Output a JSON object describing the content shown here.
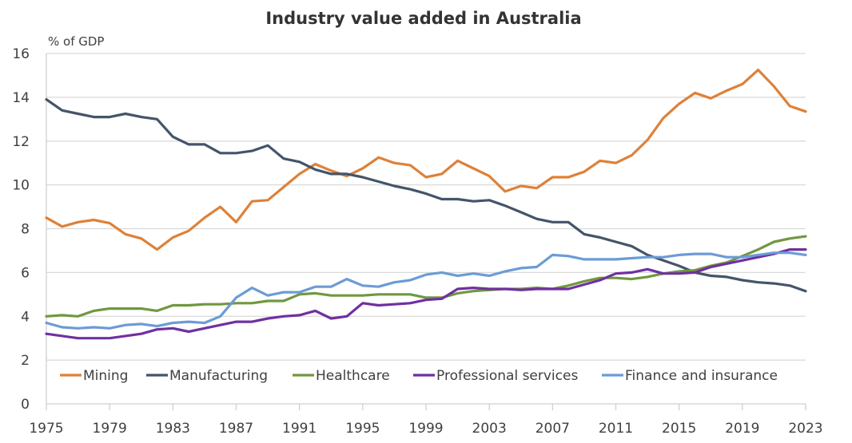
{
  "chart_data": {
    "type": "line",
    "title": "Industry value added in Australia",
    "ylabel": "% of GDP",
    "xlabel": "",
    "ylim": [
      0,
      16
    ],
    "yticks": [
      0,
      2,
      4,
      6,
      8,
      10,
      12,
      14,
      16
    ],
    "xlim": [
      1975,
      2023
    ],
    "xticks": [
      1975,
      1979,
      1983,
      1987,
      1991,
      1995,
      1999,
      2003,
      2007,
      2011,
      2015,
      2019,
      2023
    ],
    "grid": true,
    "legend_position": "bottom-inside",
    "x": [
      1975,
      1976,
      1977,
      1978,
      1979,
      1980,
      1981,
      1982,
      1983,
      1984,
      1985,
      1986,
      1987,
      1988,
      1989,
      1990,
      1991,
      1992,
      1993,
      1994,
      1995,
      1996,
      1997,
      1998,
      1999,
      2000,
      2001,
      2002,
      2003,
      2004,
      2005,
      2006,
      2007,
      2008,
      2009,
      2010,
      2011,
      2012,
      2013,
      2014,
      2015,
      2016,
      2017,
      2018,
      2019,
      2020,
      2021,
      2022,
      2023
    ],
    "series": [
      {
        "name": "Mining",
        "color": "#dd8139",
        "values": [
          8.5,
          8.1,
          8.3,
          8.4,
          8.25,
          7.75,
          7.55,
          7.05,
          7.6,
          7.9,
          8.5,
          9.0,
          8.3,
          9.25,
          9.3,
          9.9,
          10.5,
          10.95,
          10.65,
          10.4,
          10.75,
          11.25,
          11.0,
          10.9,
          10.35,
          10.5,
          11.1,
          10.75,
          10.4,
          9.7,
          9.95,
          9.85,
          10.35,
          10.35,
          10.6,
          11.1,
          11.0,
          11.35,
          12.05,
          13.05,
          13.7,
          14.2,
          13.95,
          14.3,
          14.6,
          15.25,
          14.5,
          13.6,
          13.35
        ]
      },
      {
        "name": "Manufacturing",
        "color": "#44546a",
        "values": [
          13.9,
          13.4,
          13.25,
          13.1,
          13.1,
          13.25,
          13.1,
          13.0,
          12.2,
          11.85,
          11.85,
          11.45,
          11.45,
          11.55,
          11.8,
          11.2,
          11.05,
          10.7,
          10.5,
          10.5,
          10.35,
          10.15,
          9.95,
          9.8,
          9.6,
          9.35,
          9.35,
          9.25,
          9.3,
          9.05,
          8.75,
          8.45,
          8.3,
          8.3,
          7.75,
          7.6,
          7.4,
          7.2,
          6.8,
          6.55,
          6.3,
          6.0,
          5.85,
          5.8,
          5.65,
          5.55,
          5.5,
          5.4,
          5.15
        ]
      },
      {
        "name": "Healthcare",
        "color": "#70983f",
        "values": [
          4.0,
          4.05,
          4.0,
          4.25,
          4.35,
          4.35,
          4.35,
          4.25,
          4.5,
          4.5,
          4.55,
          4.55,
          4.6,
          4.6,
          4.7,
          4.7,
          5.0,
          5.05,
          4.95,
          4.95,
          4.95,
          5.0,
          5.0,
          5.0,
          4.85,
          4.85,
          5.05,
          5.15,
          5.2,
          5.25,
          5.25,
          5.3,
          5.25,
          5.4,
          5.6,
          5.75,
          5.75,
          5.7,
          5.8,
          5.95,
          6.05,
          6.1,
          6.3,
          6.45,
          6.75,
          7.05,
          7.4,
          7.55,
          7.65
        ]
      },
      {
        "name": "Professional services",
        "color": "#7030a0",
        "values": [
          3.2,
          3.1,
          3.0,
          3.0,
          3.0,
          3.1,
          3.2,
          3.4,
          3.45,
          3.3,
          3.45,
          3.6,
          3.75,
          3.75,
          3.9,
          4.0,
          4.05,
          4.25,
          3.9,
          4.0,
          4.6,
          4.5,
          4.55,
          4.6,
          4.75,
          4.8,
          5.25,
          5.3,
          5.25,
          5.25,
          5.2,
          5.25,
          5.25,
          5.25,
          5.45,
          5.65,
          5.95,
          6.0,
          6.15,
          5.95,
          5.95,
          6.0,
          6.25,
          6.4,
          6.55,
          6.7,
          6.85,
          7.05,
          7.05
        ]
      },
      {
        "name": "Finance and insurance",
        "color": "#6c9bd6",
        "values": [
          3.7,
          3.5,
          3.45,
          3.5,
          3.45,
          3.6,
          3.65,
          3.55,
          3.7,
          3.75,
          3.7,
          4.0,
          4.85,
          5.3,
          4.95,
          5.1,
          5.1,
          5.35,
          5.35,
          5.7,
          5.4,
          5.35,
          5.55,
          5.65,
          5.9,
          6.0,
          5.85,
          5.95,
          5.85,
          6.05,
          6.2,
          6.25,
          6.8,
          6.75,
          6.6,
          6.6,
          6.6,
          6.65,
          6.7,
          6.7,
          6.8,
          6.85,
          6.85,
          6.7,
          6.7,
          6.8,
          6.9,
          6.9,
          6.8
        ]
      }
    ]
  }
}
